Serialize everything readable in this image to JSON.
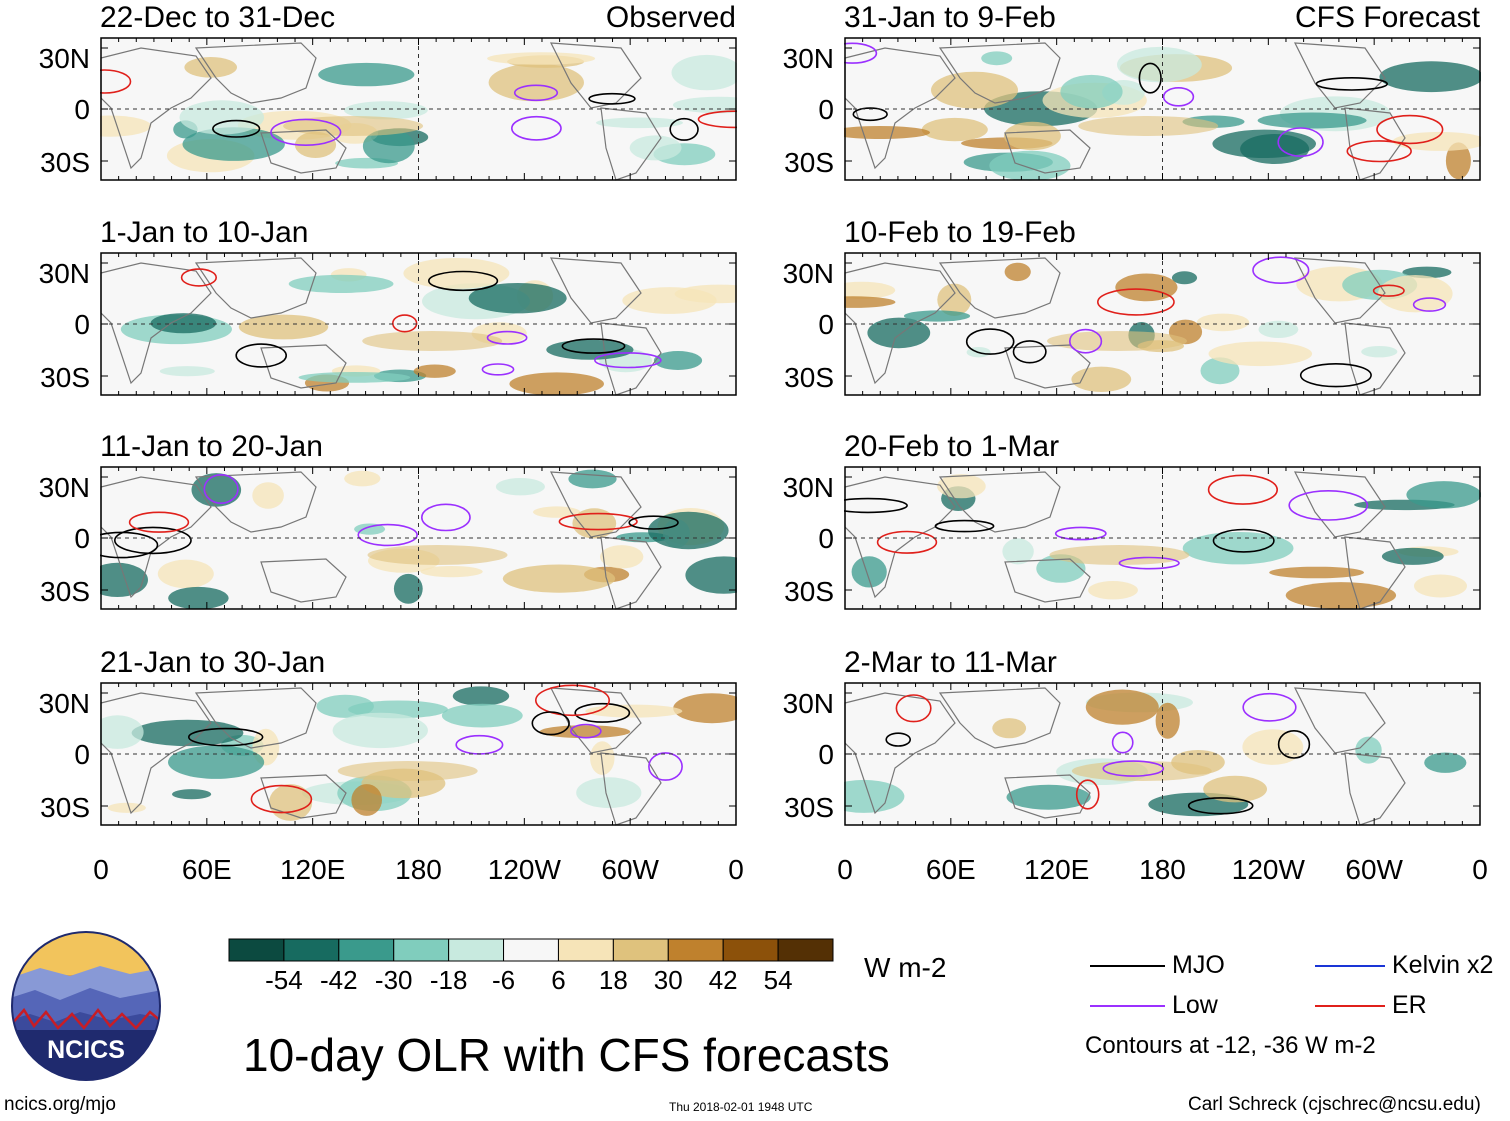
{
  "chart_data": {
    "type": "heatmap",
    "title": "10-day OLR with CFS forecasts",
    "units": "W m-2",
    "contour_note": "Contours at -12, -36 W m-2",
    "left_column_tag": "Observed",
    "right_column_tag": "CFS Forecast",
    "y_ticks": [
      "30N",
      "0",
      "30S"
    ],
    "x_ticks": [
      "0",
      "60E",
      "120E",
      "180",
      "120W",
      "60W",
      "0"
    ],
    "panels_left": [
      {
        "title": "22-Dec to 31-Dec"
      },
      {
        "title": "1-Jan to 10-Jan"
      },
      {
        "title": "11-Jan to 20-Jan"
      },
      {
        "title": "21-Jan to 30-Jan"
      }
    ],
    "panels_right": [
      {
        "title": "31-Jan to 9-Feb"
      },
      {
        "title": "10-Feb to 19-Feb"
      },
      {
        "title": "20-Feb to 1-Mar"
      },
      {
        "title": "2-Mar to 11-Mar"
      }
    ],
    "colorbar": {
      "colors": [
        "#0c4a40",
        "#176b60",
        "#3a9a8c",
        "#80cdbd",
        "#c8eadf",
        "#f7f7f7",
        "#f6e4b8",
        "#dfc27d",
        "#bf812d",
        "#8c510a",
        "#543005"
      ],
      "labels": [
        "-54",
        "-42",
        "-30",
        "-18",
        "-6",
        "6",
        "18",
        "30",
        "42",
        "54"
      ]
    },
    "legend": [
      {
        "label": "MJO",
        "color": "#000000"
      },
      {
        "label": "Kelvin x2",
        "color": "#1a35d6"
      },
      {
        "label": "Low",
        "color": "#9b30ff"
      },
      {
        "label": "ER",
        "color": "#e0201b"
      }
    ]
  },
  "logo": {
    "text": "NCICS"
  },
  "footer": {
    "website": "ncics.org/mjo",
    "timestamp": "Thu 2018-02-01 1948 UTC",
    "author": "Carl Schreck (cjschrec@ncsu.edu)"
  }
}
